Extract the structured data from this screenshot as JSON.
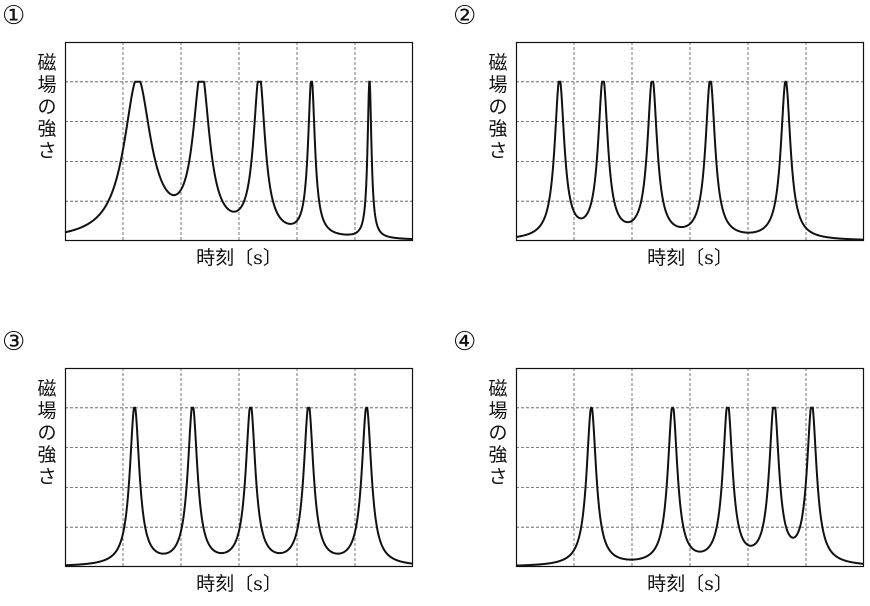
{
  "charts": [
    {
      "label": "①",
      "ylabel": "磁場の強さ",
      "xlabel": "時刻〔s〕",
      "type": "line",
      "peaks": [
        {
          "t": 1.25,
          "w": 0.28
        },
        {
          "t": 2.35,
          "w": 0.17
        },
        {
          "t": 3.35,
          "w": 0.12
        },
        {
          "t": 4.25,
          "w": 0.07
        },
        {
          "t": 5.25,
          "w": 0.04
        }
      ]
    },
    {
      "label": "②",
      "ylabel": "磁場の強さ",
      "xlabel": "時刻〔s〕",
      "type": "line",
      "peaks": [
        {
          "t": 0.75,
          "w": 0.1
        },
        {
          "t": 1.5,
          "w": 0.1
        },
        {
          "t": 2.35,
          "w": 0.1
        },
        {
          "t": 3.35,
          "w": 0.1
        },
        {
          "t": 4.65,
          "w": 0.1
        }
      ]
    },
    {
      "label": "③",
      "ylabel": "磁場の強さ",
      "xlabel": "時刻〔s〕",
      "type": "line",
      "peaks": [
        {
          "t": 1.2,
          "w": 0.1
        },
        {
          "t": 2.2,
          "w": 0.1
        },
        {
          "t": 3.2,
          "w": 0.1
        },
        {
          "t": 4.2,
          "w": 0.1
        },
        {
          "t": 5.2,
          "w": 0.1
        }
      ]
    },
    {
      "label": "④",
      "ylabel": "磁場の強さ",
      "xlabel": "時刻〔s〕",
      "type": "line",
      "peaks": [
        {
          "t": 1.3,
          "w": 0.1
        },
        {
          "t": 2.7,
          "w": 0.1
        },
        {
          "t": 3.65,
          "w": 0.1
        },
        {
          "t": 4.45,
          "w": 0.1
        },
        {
          "t": 5.1,
          "w": 0.1
        }
      ]
    }
  ],
  "chart_data": [
    {
      "type": "line",
      "xlabel": "時刻〔s〕",
      "ylabel": "磁場の強さ",
      "peak_times": [
        1.25,
        2.35,
        3.35,
        4.25,
        5.25
      ],
      "peak_value": 4,
      "grid": true,
      "xlim": [
        0,
        6
      ],
      "ylim": [
        0,
        5
      ]
    },
    {
      "type": "line",
      "xlabel": "時刻〔s〕",
      "ylabel": "磁場の強さ",
      "peak_times": [
        0.75,
        1.5,
        2.35,
        3.35,
        4.65
      ],
      "peak_value": 4,
      "grid": true,
      "xlim": [
        0,
        6
      ],
      "ylim": [
        0,
        5
      ]
    },
    {
      "type": "line",
      "xlabel": "時刻〔s〕",
      "ylabel": "磁場の強さ",
      "peak_times": [
        1.2,
        2.2,
        3.2,
        4.2,
        5.2
      ],
      "peak_value": 4,
      "grid": true,
      "xlim": [
        0,
        6
      ],
      "ylim": [
        0,
        5
      ]
    },
    {
      "type": "line",
      "xlabel": "時刻〔s〕",
      "ylabel": "磁場の強さ",
      "peak_times": [
        1.3,
        2.7,
        3.65,
        4.45,
        5.1
      ],
      "peak_value": 4,
      "grid": true,
      "xlim": [
        0,
        6
      ],
      "ylim": [
        0,
        5
      ]
    }
  ]
}
